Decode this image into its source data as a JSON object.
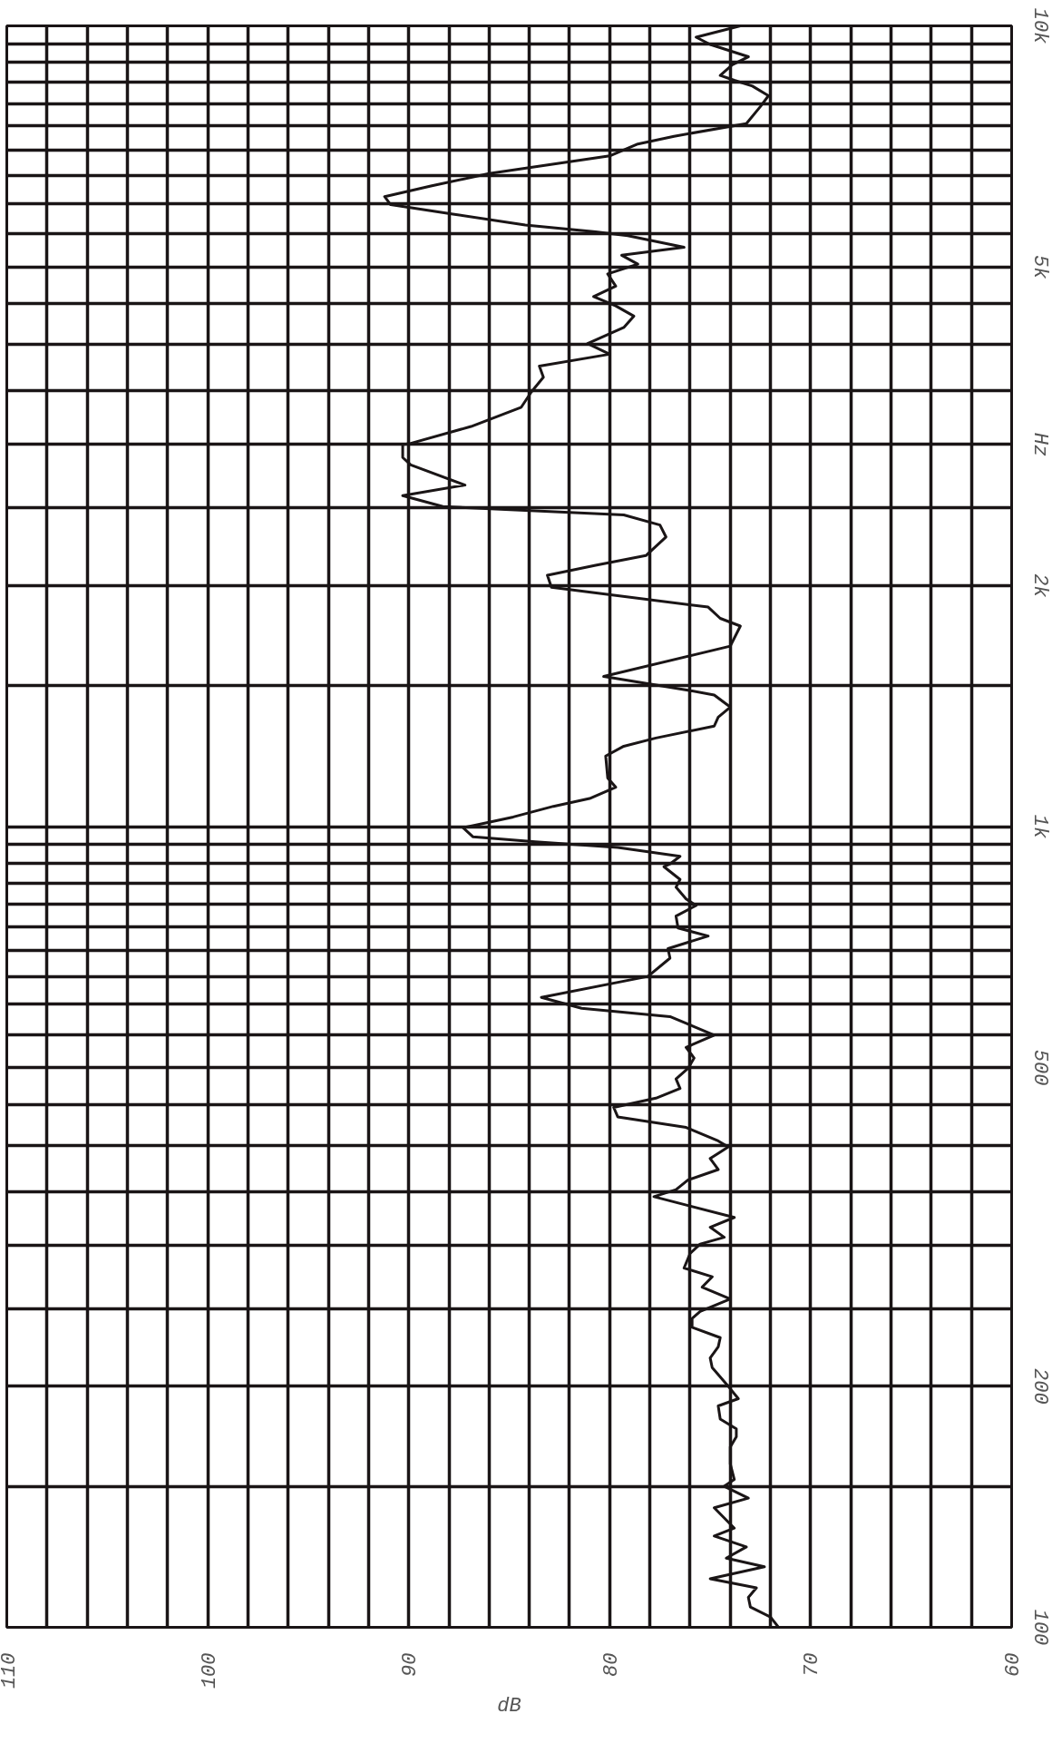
{
  "chart_data": {
    "type": "line",
    "orientation": "vertical",
    "xlabel": "dB",
    "log": "y",
    "grid": true,
    "xlim": [
      110,
      60
    ],
    "xticks": [
      110,
      {
        "value": 108,
        "label": null
      },
      {
        "value": 106,
        "label": null
      },
      {
        "value": 104,
        "label": null
      },
      {
        "value": 102,
        "label": null
      },
      100,
      {
        "value": 98,
        "label": null
      },
      {
        "value": 96,
        "label": null
      },
      {
        "value": 94,
        "label": null
      },
      {
        "value": 92,
        "label": null
      },
      90,
      {
        "value": 88,
        "label": null
      },
      {
        "value": 86,
        "label": null
      },
      {
        "value": 84,
        "label": null
      },
      {
        "value": 82,
        "label": null
      },
      80,
      {
        "value": 78,
        "label": null
      },
      {
        "value": 76,
        "label": null
      },
      {
        "value": 74,
        "label": null
      },
      {
        "value": 72,
        "label": null
      },
      70,
      {
        "value": 68,
        "label": null
      },
      {
        "value": 66,
        "label": null
      },
      {
        "value": 64,
        "label": null
      },
      {
        "value": 62,
        "label": null
      },
      60
    ],
    "ylim": [
      100,
      10000
    ],
    "yticks": [
      100,
      {
        "value": 150,
        "label": null
      },
      200,
      {
        "value": 250,
        "label": null
      },
      {
        "value": 300,
        "label": null
      },
      {
        "value": 350,
        "label": null
      },
      {
        "value": 400,
        "label": null
      },
      {
        "value": 450,
        "label": null
      },
      500,
      {
        "value": 550,
        "label": null
      },
      {
        "value": 600,
        "label": null
      },
      {
        "value": 650,
        "label": null
      },
      {
        "value": 700,
        "label": null
      },
      {
        "value": 750,
        "label": null
      },
      {
        "value": 800,
        "label": null
      },
      {
        "value": 850,
        "label": null
      },
      {
        "value": 900,
        "label": null
      },
      {
        "value": 950,
        "label": null
      },
      {
        "value": 1000,
        "label": "1k"
      },
      {
        "value": 1500,
        "label": null
      },
      {
        "value": 2000,
        "label": "2k"
      },
      {
        "value": 2500,
        "label": null
      },
      {
        "value": 3000,
        "label": "Hz"
      },
      {
        "value": 3500,
        "label": null
      },
      {
        "value": 4000,
        "label": null
      },
      {
        "value": 4500,
        "label": null
      },
      {
        "value": 5000,
        "label": "5k"
      },
      {
        "value": 5500,
        "label": null
      },
      {
        "value": 6000,
        "label": null
      },
      {
        "value": 6500,
        "label": null
      },
      {
        "value": 7000,
        "label": null
      },
      {
        "value": 7500,
        "label": null
      },
      {
        "value": 8000,
        "label": null
      },
      {
        "value": 8500,
        "label": null
      },
      {
        "value": 9000,
        "label": null
      },
      {
        "value": 9500,
        "label": null
      },
      {
        "value": 10000,
        "label": "10k"
      }
    ],
    "series": [
      {
        "color": "#1a1516",
        "values": [
          100,
          103,
          106,
          109,
          112,
          115,
          119,
          122,
          126,
          130,
          133,
          141,
          145,
          150,
          153,
          160,
          168,
          173,
          177,
          182,
          189,
          193,
          200,
          211,
          217,
          224,
          230,
          237,
          243,
          248,
          257,
          266,
          274,
          281,
          293,
          301,
          307,
          316,
          325,
          345,
          352,
          362,
          373,
          385,
          398,
          405,
          421,
          434,
          446,
          458,
          471,
          484,
          499,
          514,
          530,
          549,
          579,
          593,
          612,
          650,
          685,
          704,
          730,
          747,
          773,
          797,
          812,
          840,
          859,
          891,
          898,
          918,
          942,
          957,
          971,
          997,
          1004,
          1028,
          1060,
          1084,
          1120,
          1150,
          1225,
          1260,
          1290,
          1335,
          1370,
          1410,
          1460,
          1480,
          1540,
          1680,
          1780,
          1820,
          1880,
          1990,
          2060,
          2120,
          2180,
          2300,
          2380,
          2450,
          2510,
          2590,
          2670,
          2830,
          2890,
          3000,
          3010,
          3160,
          3340,
          3490,
          3640,
          3760,
          3890,
          4010,
          4200,
          4340,
          4470,
          4590,
          4730,
          4900,
          5040,
          5170,
          5290,
          5470,
          5530,
          5640,
          5820,
          5980,
          6120,
          6310,
          6540,
          6880,
          7120,
          7280,
          7550,
          7930,
          8180,
          8410,
          8550,
          8670,
          8940,
          9150,
          9480,
          9680,
          10000
        ],
        "x": [
          71.6,
          72.0,
          73.0,
          73.1,
          72.7,
          75.0,
          72.3,
          74.2,
          73.2,
          74.8,
          73.8,
          74.8,
          73.1,
          74.3,
          73.8,
          74.0,
          74.0,
          73.7,
          73.7,
          74.5,
          74.6,
          73.6,
          74.1,
          74.9,
          75.0,
          74.6,
          74.5,
          75.9,
          75.9,
          75.5,
          74.0,
          75.4,
          74.9,
          76.3,
          76.0,
          75.5,
          74.3,
          75.0,
          73.8,
          77.8,
          76.7,
          76.1,
          74.6,
          75.0,
          74.1,
          74.6,
          76.2,
          79.6,
          79.8,
          77.7,
          76.5,
          76.7,
          76.1,
          75.8,
          76.2,
          74.8,
          77.0,
          81.4,
          83.4,
          78.1,
          77.0,
          77.1,
          75.1,
          76.6,
          76.7,
          75.7,
          76.2,
          76.7,
          76.5,
          77.3,
          77.0,
          76.5,
          79.6,
          83.7,
          86.8,
          87.3,
          86.7,
          84.8,
          82.8,
          81.0,
          79.7,
          80.1,
          80.2,
          79.3,
          77.7,
          74.8,
          74.6,
          74.0,
          74.8,
          76.1,
          80.3,
          74.0,
          73.5,
          74.5,
          75.1,
          82.9,
          83.1,
          80.7,
          78.2,
          77.2,
          77.5,
          79.3,
          88.3,
          90.3,
          87.2,
          89.9,
          90.3,
          90.3,
          89.9,
          86.9,
          84.4,
          83.9,
          83.3,
          83.5,
          80.0,
          81.1,
          79.3,
          78.8,
          79.7,
          80.8,
          79.7,
          80.1,
          78.6,
          79.4,
          76.3,
          79.1,
          80.7,
          84.2,
          87.8,
          90.9,
          91.2,
          88.9,
          86.0,
          80.0,
          78.6,
          76.8,
          73.2,
          72.5,
          72.1,
          72.9,
          73.8,
          74.5,
          73.9,
          73.1,
          75.0,
          75.7,
          73.5
        ]
      }
    ]
  }
}
